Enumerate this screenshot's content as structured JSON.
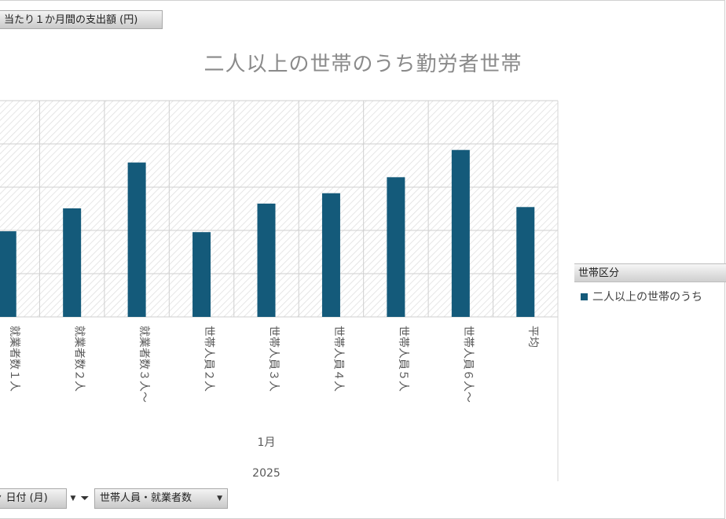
{
  "value_field_button": "当たり１か月間の支出額 (円)",
  "axis_fields": [
    {
      "label": "日付 (月)",
      "has_dropdown": true,
      "filtered": true
    },
    {
      "label": "世帯人員・就業者数",
      "has_dropdown": true,
      "filtered": false
    }
  ],
  "legend": {
    "title": "世帯区分",
    "items": [
      {
        "label": "二人以上の世帯のうち",
        "color": "#145a7a"
      }
    ]
  },
  "chart_data": {
    "type": "bar",
    "title": "二人以上の世帯のうち勤労者世帯",
    "categories": [
      "就業者数１人",
      "就業者数２人",
      "就業者数３人～",
      "世帯人員２人",
      "世帯人員３人",
      "世帯人員４人",
      "世帯人員５人",
      "世帯人員６人～",
      "平均"
    ],
    "group_labels": [
      "1月",
      "2025"
    ],
    "series": [
      {
        "name": "二人以上の世帯のうち",
        "color": "#145a7a",
        "values": [
          0.198,
          0.251,
          0.357,
          0.196,
          0.262,
          0.286,
          0.323,
          0.386,
          0.254
        ]
      }
    ],
    "y_axis_fraction_range": [
      0,
      0.5
    ],
    "grid": true,
    "legend_position": "right"
  }
}
